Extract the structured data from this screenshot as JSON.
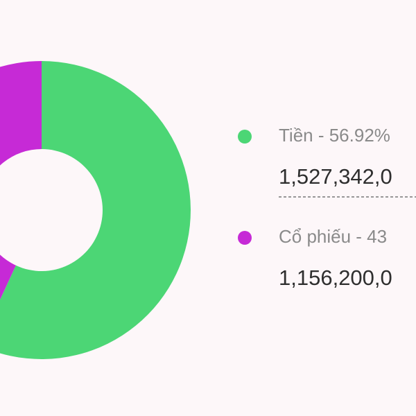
{
  "chart_data": {
    "type": "donut",
    "categories": [
      "Tiền - 56.92%",
      "Cổ phiếu - 43"
    ],
    "values": [
      56.92,
      43.08
    ],
    "colors": [
      "#4cd675",
      "#c62ad6"
    ],
    "amounts": [
      "1,527,342,0",
      "1,156,200,0"
    ]
  }
}
